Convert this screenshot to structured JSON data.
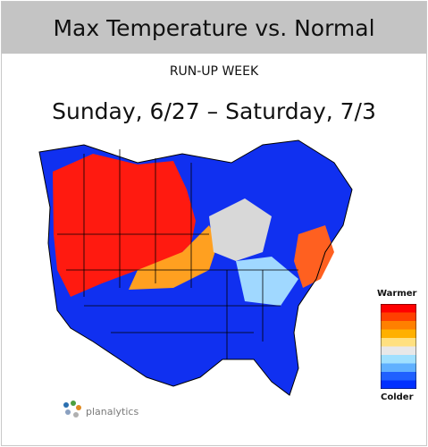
{
  "header": {
    "title": "Max Temperature vs. Normal",
    "subtitle": "RUN-UP WEEK",
    "date_range": "Sunday, 6/27 – Saturday, 7/3"
  },
  "legend": {
    "top_label": "Warmer",
    "bottom_label": "Colder",
    "scale_colors": [
      "#ff0000",
      "#ff4000",
      "#ff8000",
      "#ffb000",
      "#ffe080",
      "#e8e8e8",
      "#a0e0ff",
      "#60b0ff",
      "#2060ff",
      "#0030ff"
    ]
  },
  "map": {
    "warm_color": "#ff1a10",
    "cold_color": "#1030f0",
    "neutral_color": "#d8d8d8",
    "border_color": "#000000"
  },
  "brand": {
    "name": "planalytics"
  }
}
